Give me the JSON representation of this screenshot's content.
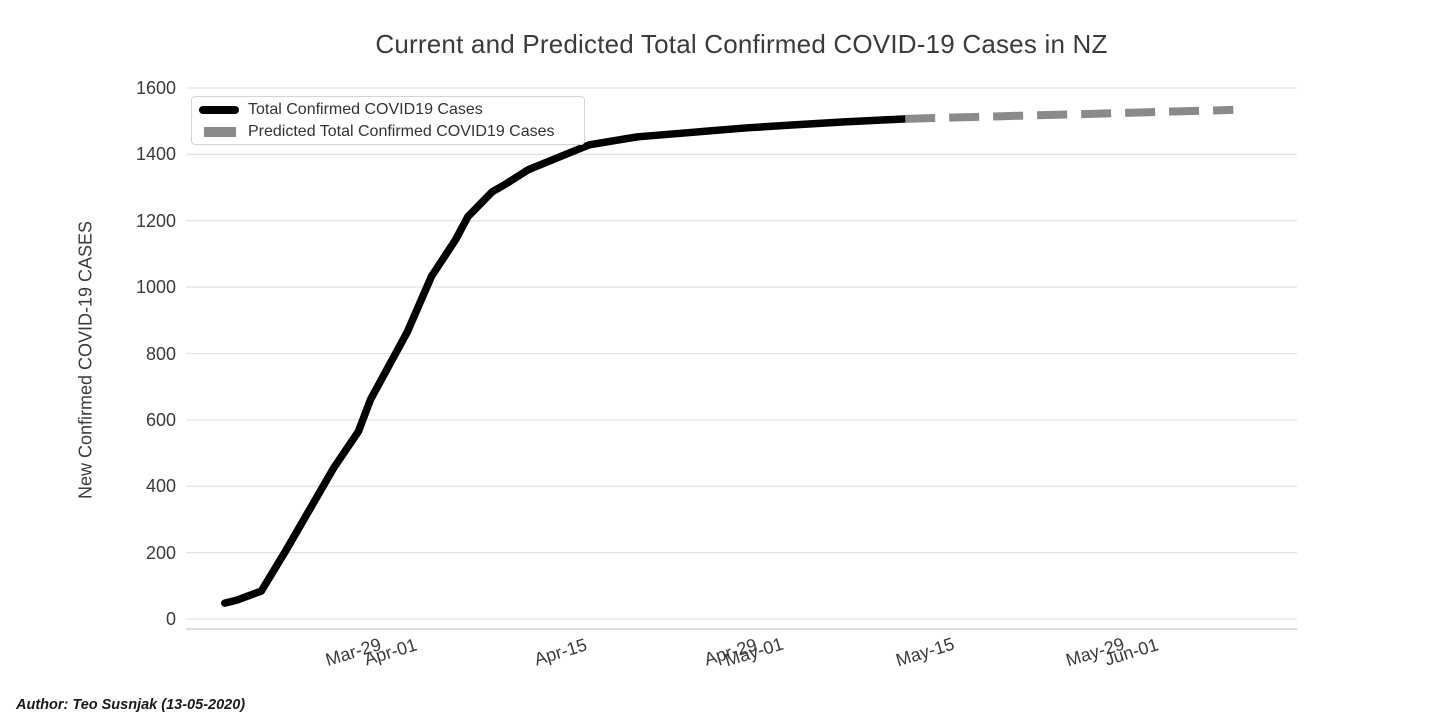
{
  "page": {
    "background": "#ffffff"
  },
  "chart": {
    "title": "Current and Predicted Total Confirmed COVID-19 Cases in NZ",
    "ylabel": "New Confirmed COVID-19 CASES",
    "author_note": "Author: Teo Susnjak (13-05-2020)"
  },
  "chart_data": {
    "type": "line",
    "title": "Current and Predicted Total Confirmed COVID-19 Cases in NZ",
    "xlabel": "",
    "ylabel": "New Confirmed COVID-19 CASES",
    "ylim": [
      0,
      1600
    ],
    "yticks": [
      0,
      200,
      400,
      600,
      800,
      1000,
      1200,
      1400,
      1600
    ],
    "xticks": [
      "Mar-29",
      "Apr-01",
      "Apr-15",
      "Apr-29",
      "May-01",
      "May-15",
      "May-29",
      "Jun-01"
    ],
    "x_range": [
      "Mar-15",
      "Jun-14"
    ],
    "grid": "horizontal",
    "gridline_color": "#e3e3e3",
    "axisline_color": "#c9c9c9",
    "legend_position": "top-left",
    "series": [
      {
        "name": "Total Confirmed COVID19 Cases",
        "color": "#000000",
        "dash": "solid",
        "width": 7.5,
        "points": [
          [
            "Mar-18",
            48
          ],
          [
            "Mar-19",
            57
          ],
          [
            "Mar-21",
            84
          ],
          [
            "Mar-23",
            205
          ],
          [
            "Mar-25",
            331
          ],
          [
            "Mar-27",
            457
          ],
          [
            "Mar-29",
            565
          ],
          [
            "Mar-30",
            662
          ],
          [
            "Apr-02",
            863
          ],
          [
            "Apr-04",
            1032
          ],
          [
            "Apr-06",
            1143
          ],
          [
            "Apr-07",
            1212
          ],
          [
            "Apr-09",
            1287
          ],
          [
            "Apr-10",
            1308
          ],
          [
            "Apr-12",
            1354
          ],
          [
            "Apr-15",
            1399
          ],
          [
            "Apr-17",
            1429
          ],
          [
            "Apr-21",
            1453
          ],
          [
            "Apr-25",
            1465
          ],
          [
            "Apr-30",
            1480
          ],
          [
            "May-04",
            1489
          ],
          [
            "May-08",
            1498
          ],
          [
            "May-13",
            1507
          ]
        ]
      },
      {
        "name": "Predicted Total Confirmed COVID19 Cases",
        "color": "#8a8a8a",
        "dash": "dashed",
        "width": 8,
        "points": [
          [
            "May-13",
            1507
          ],
          [
            "May-17",
            1511
          ],
          [
            "May-21",
            1515
          ],
          [
            "May-25",
            1519
          ],
          [
            "May-29",
            1523
          ],
          [
            "Jun-02",
            1527
          ],
          [
            "Jun-06",
            1531
          ],
          [
            "Jun-09",
            1534
          ]
        ]
      }
    ]
  }
}
